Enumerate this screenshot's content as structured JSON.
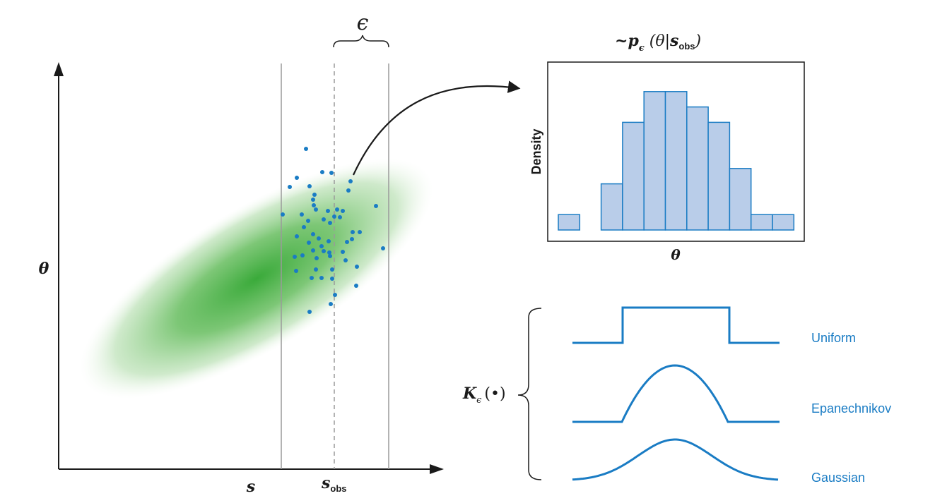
{
  "scatter_panel": {
    "x_axis_label": "s",
    "y_axis_label": "θ",
    "s_obs_main": "s",
    "s_obs_sub": "obs",
    "epsilon_label": "ϵ"
  },
  "histogram_panel": {
    "title_prefix": "~",
    "title_p": "p",
    "title_p_sub": "ϵ",
    "title_args_open": " (θ|",
    "title_s": "s",
    "title_s_sub": "obs",
    "title_args_close": ")",
    "y_label": "Density",
    "x_label": "θ"
  },
  "kernel_panel": {
    "label_main": "K",
    "label_sub": "ϵ",
    "label_arg": "(•)",
    "kernels": [
      {
        "name": "Uniform",
        "shape": "uniform"
      },
      {
        "name": "Epanechnikov",
        "shape": "epanechnikov"
      },
      {
        "name": "Gaussian",
        "shape": "gaussian"
      }
    ]
  },
  "colors": {
    "accent_blue": "#1a7cc4",
    "hist_fill": "#b9cde9",
    "ellipse_green": "#3aaa3a",
    "window_gray": "#9a9a9a"
  },
  "chart_data": {
    "type": "bar",
    "y_label": "Density",
    "x_label": "θ",
    "bins": 11,
    "values": [
      0.1,
      0,
      0.3,
      0.7,
      0.9,
      0.9,
      0.8,
      0.7,
      0.4,
      0.1,
      0.1
    ]
  }
}
